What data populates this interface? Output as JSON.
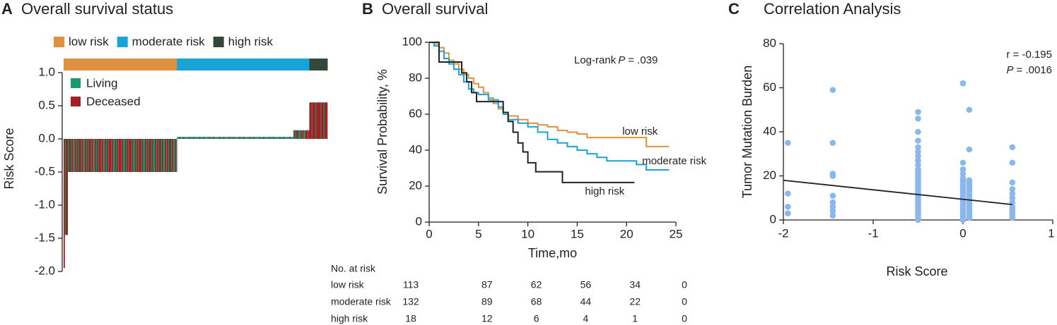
{
  "chart_data": [
    {
      "type": "bar",
      "panel": "A",
      "title": "Overall survival status",
      "ylabel": "Risk Score",
      "ylim": [
        -2.0,
        1.0
      ],
      "yticks": [
        {
          "value": 1.0,
          "label": "1.0"
        },
        {
          "value": 0.5,
          "label": "0.5"
        },
        {
          "value": 0.0,
          "label": "0.0"
        },
        {
          "value": -0.5,
          "label": "-0.5"
        },
        {
          "value": -1.0,
          "label": "-1.0"
        },
        {
          "value": -1.5,
          "label": "-1.5"
        },
        {
          "value": -2.0,
          "label": "-2.0"
        }
      ],
      "groups": [
        {
          "name": "low risk",
          "color": "#e0913f"
        },
        {
          "name": "moderate risk",
          "color": "#1aa3d6"
        },
        {
          "name": "high risk",
          "color": "#34483a"
        }
      ],
      "series": [
        {
          "name": "Living",
          "color": "#1a9a6e",
          "values": [
            null,
            -1.45,
            null,
            null,
            -0.5,
            null,
            null,
            -0.5,
            null,
            -0.5,
            -0.5,
            null,
            -0.5,
            null,
            -0.5,
            null,
            null,
            -0.5,
            null,
            -0.5,
            -0.5,
            null,
            -0.5,
            null,
            -0.5,
            null,
            null,
            -0.5,
            null,
            -0.5,
            -0.5,
            null,
            -0.5,
            null,
            -0.5,
            null,
            null,
            -0.5,
            null,
            -0.5,
            -0.5,
            null,
            -0.5,
            null,
            -0.5,
            null,
            null,
            -0.5,
            null,
            -0.5,
            -0.5,
            null,
            -0.5,
            null,
            -0.5,
            null,
            null,
            -0.5,
            null,
            -0.5,
            -0.5,
            null,
            -0.5,
            null,
            -0.5,
            null,
            null,
            -0.5,
            null,
            -0.5,
            -0.5,
            null,
            -0.5,
            null,
            -0.5,
            null,
            null,
            -0.5,
            null,
            -0.5,
            -0.5,
            null,
            -0.5,
            null,
            -0.5,
            null,
            null,
            -0.5,
            null,
            -0.5,
            -0.5,
            null,
            -0.5,
            null,
            -0.5,
            null,
            null,
            -0.5,
            null,
            -0.5,
            -0.5,
            null,
            -0.5,
            null,
            -0.5,
            null,
            null,
            -0.5,
            null,
            -0.5,
            -0.5,
            null,
            -0.5,
            0.03,
            0.03,
            null,
            0.03,
            0.03,
            0.03,
            null,
            0.03,
            0.03,
            0.03,
            0.03,
            0.03,
            null,
            0.03,
            0.03,
            0.03,
            null,
            0.03,
            0.03,
            0.03,
            0.03,
            0.03,
            null,
            0.03,
            0.03,
            0.03,
            null,
            0.03,
            0.03,
            0.03,
            0.03,
            0.03,
            null,
            0.03,
            0.03,
            0.03,
            null,
            0.03,
            0.03,
            0.03,
            0.03,
            0.03,
            null,
            0.03,
            0.03,
            0.03,
            null,
            0.03,
            0.03,
            0.03,
            0.03,
            0.03,
            null,
            0.03,
            0.03,
            0.03,
            null,
            0.03,
            0.03,
            0.03,
            0.03,
            0.03,
            null,
            0.03,
            0.03,
            0.03,
            null,
            0.03,
            0.03,
            0.03,
            0.03,
            0.03,
            null,
            0.03,
            0.03,
            0.03,
            null,
            0.03,
            0.03,
            0.03,
            0.03,
            0.03,
            null,
            0.03,
            0.03,
            0.03,
            null,
            0.03,
            0.03,
            0.03,
            0.03,
            0.03,
            null,
            0.03,
            0.03,
            0.03,
            null,
            0.03,
            0.03,
            0.03,
            0.03,
            0.03,
            null,
            0.03,
            0.03,
            0.03,
            null,
            0.03,
            0.03,
            0.03,
            0.03,
            0.03,
            null,
            0.03,
            0.03,
            0.03,
            0.13,
            null,
            0.13,
            null,
            null,
            0.13,
            0.13,
            null,
            0.13,
            null,
            0.13,
            0.13,
            null,
            null,
            0.13,
            null,
            null,
            null,
            0.55,
            null,
            null,
            null,
            0.55,
            null,
            null,
            null,
            null,
            0.55,
            null,
            null,
            0.55,
            null,
            null,
            null
          ]
        },
        {
          "name": "Deceased",
          "color": "#a41f23",
          "values": [
            -1.95,
            null,
            -1.45,
            -1.45,
            null,
            -0.5,
            -0.5,
            null,
            -0.5,
            null,
            null,
            -0.5,
            null,
            -0.5,
            null,
            -0.5,
            -0.5,
            null,
            -0.5,
            null,
            null,
            -0.5,
            null,
            -0.5,
            null,
            -0.5,
            -0.5,
            null,
            -0.5,
            null,
            null,
            -0.5,
            null,
            -0.5,
            null,
            -0.5,
            -0.5,
            null,
            -0.5,
            null,
            null,
            -0.5,
            null,
            -0.5,
            null,
            -0.5,
            -0.5,
            null,
            -0.5,
            null,
            null,
            -0.5,
            null,
            -0.5,
            null,
            -0.5,
            -0.5,
            null,
            -0.5,
            null,
            null,
            -0.5,
            null,
            -0.5,
            null,
            -0.5,
            -0.5,
            null,
            -0.5,
            null,
            null,
            -0.5,
            null,
            -0.5,
            null,
            -0.5,
            -0.5,
            null,
            -0.5,
            null,
            null,
            -0.5,
            null,
            -0.5,
            null,
            -0.5,
            -0.5,
            null,
            -0.5,
            null,
            null,
            -0.5,
            null,
            -0.5,
            null,
            -0.5,
            -0.5,
            null,
            -0.5,
            null,
            null,
            -0.5,
            null,
            -0.5,
            null,
            -0.5,
            -0.5,
            null,
            -0.5,
            null,
            null,
            -0.5,
            null,
            null,
            null,
            0.03,
            null,
            null,
            null,
            0.03,
            null,
            null,
            null,
            null,
            null,
            0.03,
            null,
            null,
            null,
            0.03,
            null,
            null,
            null,
            null,
            null,
            0.03,
            null,
            null,
            null,
            0.03,
            null,
            null,
            null,
            null,
            null,
            0.03,
            null,
            null,
            null,
            0.03,
            null,
            null,
            null,
            null,
            null,
            0.03,
            null,
            null,
            null,
            0.03,
            null,
            null,
            null,
            null,
            null,
            0.03,
            null,
            null,
            null,
            0.03,
            null,
            null,
            null,
            null,
            null,
            0.03,
            null,
            null,
            null,
            0.03,
            null,
            null,
            null,
            null,
            null,
            0.03,
            null,
            null,
            null,
            0.03,
            null,
            null,
            null,
            null,
            null,
            0.03,
            null,
            null,
            null,
            0.03,
            null,
            null,
            null,
            null,
            null,
            0.03,
            null,
            null,
            null,
            0.03,
            null,
            null,
            null,
            null,
            null,
            0.03,
            null,
            null,
            null,
            0.03,
            null,
            null,
            null,
            null,
            null,
            0.03,
            null,
            null,
            null,
            null,
            0.13,
            null,
            0.13,
            0.13,
            null,
            null,
            0.13,
            null,
            0.13,
            null,
            null,
            0.13,
            0.13,
            null,
            0.13,
            0.55,
            0.55,
            null,
            0.55,
            0.55,
            0.55,
            null,
            0.55,
            0.55,
            0.55,
            0.55,
            null,
            0.55,
            0.55,
            null,
            0.55,
            0.55,
            0.55
          ]
        }
      ]
    },
    {
      "type": "line",
      "panel": "B",
      "title": "Overall survival",
      "xlabel": "Time,mo",
      "ylabel": "Survival Probability, %",
      "xlim": [
        0,
        25
      ],
      "xticks": [
        0,
        5,
        10,
        15,
        20,
        25
      ],
      "ylim": [
        0,
        100
      ],
      "yticks": [
        0,
        20,
        40,
        60,
        80,
        100
      ],
      "annotation": {
        "text": "Log-rank",
        "italic": "P",
        "rest": "= .039"
      },
      "series": [
        {
          "name": "low risk",
          "color": "#e0913f",
          "x": [
            0,
            0.5,
            1,
            1.5,
            2,
            2.5,
            3,
            3.5,
            4,
            4.5,
            5,
            5.5,
            6,
            6.5,
            7,
            7.5,
            8,
            9,
            10,
            11,
            12,
            13,
            14,
            15,
            16,
            22,
            24.3
          ],
          "values": [
            100,
            99,
            97,
            94,
            90,
            88,
            85,
            82,
            80,
            77,
            75,
            72,
            69,
            66,
            63,
            61,
            59,
            57,
            55,
            54,
            53,
            51,
            50,
            49,
            47,
            42,
            42
          ]
        },
        {
          "name": "moderate risk",
          "color": "#1aa3d6",
          "x": [
            0,
            0.5,
            1,
            1.5,
            2,
            2.5,
            3,
            3.5,
            4,
            4.5,
            5,
            6,
            7,
            7.5,
            8,
            9,
            10,
            11,
            12,
            13,
            14,
            15,
            16,
            17,
            18,
            21,
            22,
            24.3
          ],
          "values": [
            100,
            98,
            95,
            91,
            88,
            85,
            82,
            78,
            74,
            72,
            71,
            68,
            64,
            60,
            57,
            55,
            53,
            50,
            46,
            44,
            42,
            40,
            38,
            36,
            34,
            32,
            29,
            29
          ]
        },
        {
          "name": "high risk",
          "color": "#222222",
          "x": [
            0,
            1,
            3.3,
            3.8,
            4.3,
            4.8,
            7.5,
            8,
            8.5,
            9,
            9.5,
            10,
            10.8,
            13.5,
            20.8
          ],
          "values": [
            100,
            89,
            83,
            78,
            72,
            67,
            61,
            56,
            50,
            44,
            39,
            33,
            28,
            22,
            22
          ]
        }
      ],
      "risk_table": {
        "title": "No. at risk",
        "rows": [
          {
            "name": "low risk",
            "values": [
              113,
              87,
              62,
              56,
              34,
              0
            ]
          },
          {
            "name": "moderate risk",
            "values": [
              132,
              89,
              68,
              44,
              22,
              0
            ]
          },
          {
            "name": "high risk",
            "values": [
              18,
              12,
              6,
              4,
              1,
              0
            ]
          }
        ]
      }
    },
    {
      "type": "scatter",
      "panel": "C",
      "title": "Correlation Analysis",
      "xlabel": "Risk Score",
      "ylabel": "Tumor Mutation Burden",
      "xlim": [
        -2,
        1
      ],
      "xticks": [
        -2,
        -1,
        0,
        1
      ],
      "ylim": [
        0,
        80
      ],
      "yticks": [
        0,
        20,
        40,
        60,
        80
      ],
      "color": "#8ab8ec",
      "annotation": {
        "r": "r = -0.195",
        "italic": "P",
        "rest": "= .0016"
      },
      "x": [
        -1.95,
        -1.95,
        -1.95,
        -1.95,
        -1.45,
        -1.45,
        -1.45,
        -1.45,
        -1.45,
        -1.45,
        -1.45,
        -1.45,
        -1.45,
        -0.5,
        -0.5,
        -0.5,
        -0.5,
        -0.5,
        -0.5,
        -0.5,
        -0.5,
        -0.5,
        -0.5,
        -0.5,
        -0.5,
        -0.5,
        -0.5,
        -0.5,
        -0.5,
        -0.5,
        -0.5,
        -0.5,
        -0.5,
        -0.5,
        -0.5,
        -0.5,
        -0.5,
        -0.5,
        -0.5,
        -0.5,
        -0.5,
        -0.5,
        -0.5,
        -0.5,
        -0.5,
        -0.5,
        0,
        0,
        0,
        0,
        0,
        0,
        0,
        0,
        0,
        0,
        0,
        0,
        0,
        0,
        0,
        0,
        0,
        0,
        0,
        0,
        0,
        0,
        0,
        0,
        0.07,
        0.07,
        0.07,
        0.07,
        0.07,
        0.07,
        0.07,
        0.07,
        0.07,
        0.07,
        0.07,
        0.07,
        0.07,
        0.07,
        0.07,
        0.07,
        0.07,
        0.07,
        0.07,
        0.07,
        0.55,
        0.55,
        0.55,
        0.55,
        0.55,
        0.55,
        0.55,
        0.55,
        0.55,
        0.55,
        0.55,
        0.55,
        0.55
      ],
      "values": [
        35,
        12,
        6,
        3,
        59,
        35,
        21,
        20,
        11,
        8,
        6,
        4,
        2,
        49,
        46,
        40,
        36,
        33,
        31,
        29,
        27,
        25,
        23,
        22,
        21,
        20,
        19,
        18,
        17,
        16,
        15,
        14,
        13,
        12,
        11,
        10,
        9,
        8,
        7,
        6,
        5,
        4,
        3,
        2,
        1,
        0,
        62,
        26,
        23,
        21,
        19,
        18,
        17,
        16,
        15,
        14,
        13,
        12,
        11,
        10,
        9,
        8,
        7,
        6,
        5,
        4,
        3,
        2,
        1,
        0,
        50,
        32,
        18,
        17,
        16,
        15,
        14,
        13,
        12,
        11,
        10,
        9,
        8,
        7,
        6,
        5,
        4,
        3,
        2,
        1,
        33,
        26,
        17,
        14,
        12,
        10,
        8,
        6,
        5,
        4,
        3,
        2,
        1
      ],
      "fit": {
        "x": [
          -2,
          0.55
        ],
        "values": [
          18,
          7
        ]
      }
    }
  ]
}
